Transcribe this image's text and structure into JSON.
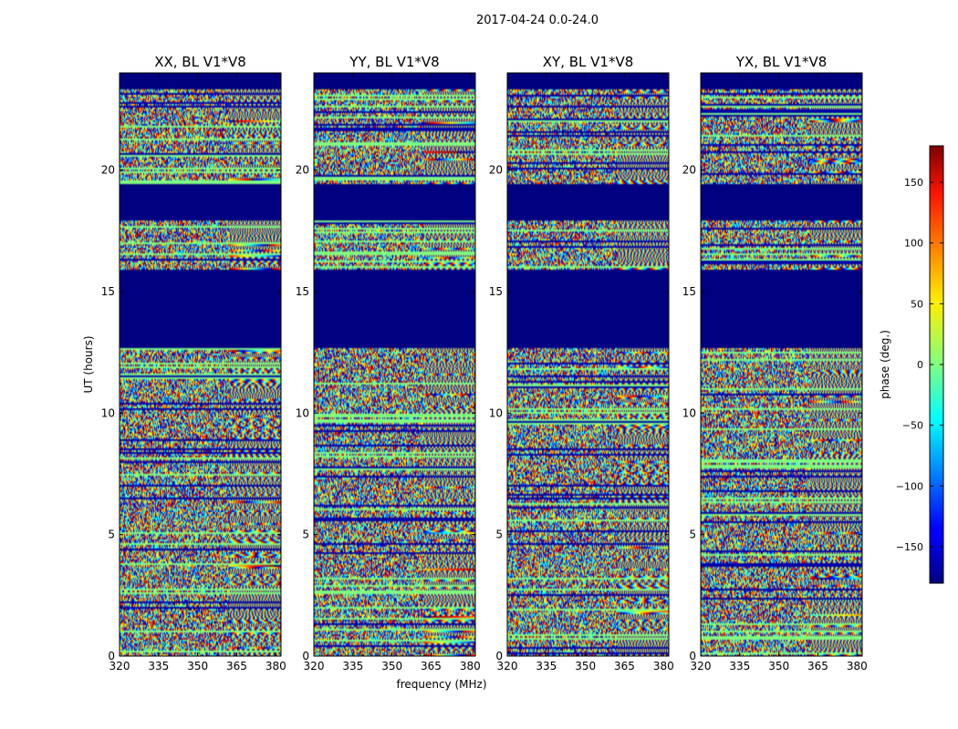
{
  "suptitle": "2017-04-24 0.0-24.0",
  "chart_data": {
    "type": "heatmap",
    "shared_xlabel": "frequency (MHz)",
    "shared_ylabel": "UT (hours)",
    "xlim": [
      320,
      382
    ],
    "ylim": [
      0,
      24
    ],
    "xticks": [
      320,
      335,
      350,
      365,
      380
    ],
    "yticks": [
      0,
      5,
      10,
      15,
      20
    ],
    "colormap": "jet",
    "panels": [
      {
        "title": "XX, BL V1*V8",
        "show_ylabel": true
      },
      {
        "title": "YY, BL V1*V8",
        "show_xlabel": true
      },
      {
        "title": "XY, BL V1*V8"
      },
      {
        "title": "YX, BL V1*V8"
      }
    ],
    "colorbar": {
      "label": "phase (deg.)",
      "range": [
        -180,
        180
      ],
      "ticks": [
        150,
        100,
        50,
        0,
        -50,
        -100,
        -150
      ],
      "tick_labels": [
        "150",
        "100",
        "50",
        "0",
        "−50",
        "−100",
        "−150"
      ]
    },
    "blank_bands_hours": [
      [
        23.3,
        24.0
      ],
      [
        17.9,
        19.4
      ],
      [
        12.7,
        15.9
      ]
    ],
    "grid": false
  }
}
